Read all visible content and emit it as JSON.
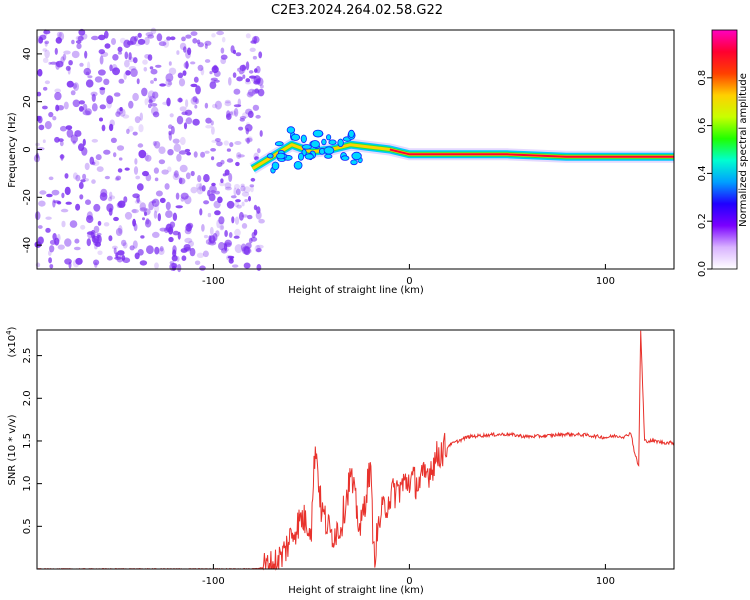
{
  "title": "C2E3.2024.264.02.58.G22",
  "colors": {
    "spectrum_noise": "#7a2cf0",
    "snr_line": "#e8322c",
    "axis": "#000000",
    "colorbar": [
      "#ffffff",
      "#d9b3ff",
      "#7a00ff",
      "#2000ff",
      "#00a0ff",
      "#00ffd0",
      "#20ff00",
      "#c8ff00",
      "#ffd000",
      "#ff4000",
      "#ff0030",
      "#ff00c0"
    ]
  },
  "chart_data": [
    {
      "type": "heatmap",
      "xlabel": "Height of straight line (km)",
      "ylabel": "Frequency (Hz)",
      "xlim": [
        -190,
        135
      ],
      "ylim": [
        -50,
        50
      ],
      "x_ticks": [
        -100,
        0,
        100
      ],
      "y_ticks": [
        -40,
        -20,
        0,
        20,
        40
      ],
      "noise_region": {
        "x_range": [
          -190,
          -75
        ],
        "y_range": [
          -50,
          50
        ]
      },
      "ridge": [
        {
          "x": -80,
          "y": -8
        },
        {
          "x": -70,
          "y": -3
        },
        {
          "x": -60,
          "y": 2
        },
        {
          "x": -50,
          "y": -1
        },
        {
          "x": -40,
          "y": 0
        },
        {
          "x": -30,
          "y": 2
        },
        {
          "x": -20,
          "y": 1
        },
        {
          "x": -10,
          "y": 0
        },
        {
          "x": 0,
          "y": -2
        },
        {
          "x": 20,
          "y": -2
        },
        {
          "x": 50,
          "y": -2
        },
        {
          "x": 80,
          "y": -3
        },
        {
          "x": 100,
          "y": -3
        },
        {
          "x": 115,
          "y": -3
        },
        {
          "x": 135,
          "y": -3
        }
      ],
      "colorbar": {
        "label": "Normalized spectral amplitude",
        "range": [
          0,
          1
        ],
        "ticks": [
          "0.0",
          "0.2",
          "0.4",
          "0.6",
          "0.8"
        ]
      }
    },
    {
      "type": "line",
      "xlabel": "Height of straight line (km)",
      "ylabel": "SNR (10 * v/v)",
      "y_multiplier_label": "(x10",
      "y_multiplier_exp": "4",
      "y_multiplier_close": ")",
      "xlim": [
        -190,
        135
      ],
      "ylim": [
        0,
        28000
      ],
      "x_ticks": [
        -100,
        0,
        100
      ],
      "y_ticks": [
        "0.5",
        "1.0",
        "1.5",
        "2.0",
        "2.5"
      ],
      "series": [
        {
          "x": [
            -190,
            -150,
            -100,
            -80,
            -70,
            -65,
            -60,
            -55,
            -50,
            -48,
            -45,
            -40,
            -35,
            -30,
            -25,
            -20,
            -18,
            -15,
            -10,
            -5,
            0,
            5,
            10,
            15,
            20,
            30,
            40,
            50,
            60,
            70,
            80,
            90,
            100,
            105,
            110,
            113,
            115,
            117,
            118,
            120,
            125,
            130,
            135
          ],
          "y": [
            0,
            0,
            0,
            0,
            300,
            1500,
            4000,
            6000,
            5000,
            15000,
            7000,
            4000,
            5000,
            11000,
            4500,
            12000,
            1500,
            6000,
            8500,
            9500,
            10500,
            10000,
            11500,
            13500,
            14500,
            15500,
            15700,
            15800,
            15500,
            15600,
            15800,
            15700,
            15400,
            15600,
            15500,
            16000,
            13500,
            12000,
            28000,
            15000,
            15000,
            14800,
            14800
          ]
        }
      ]
    }
  ]
}
